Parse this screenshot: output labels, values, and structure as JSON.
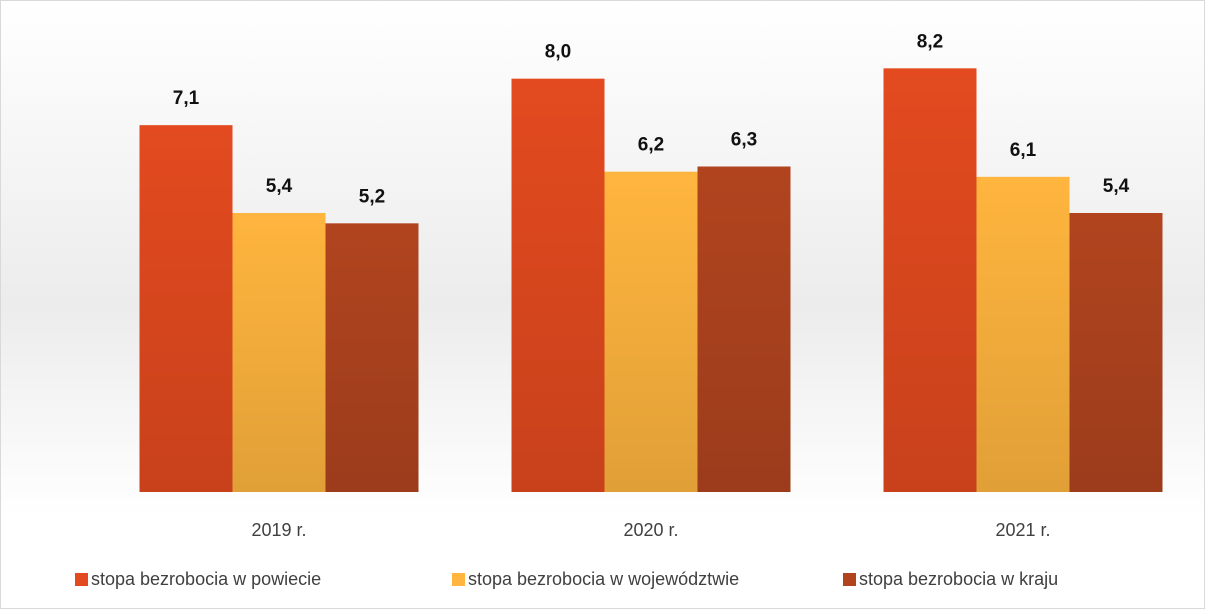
{
  "chart_data": {
    "type": "bar",
    "categories": [
      "2019 r.",
      "2020 r.",
      "2021 r."
    ],
    "series": [
      {
        "name": "stopa bezrobocia w powiecie",
        "color": "#e34a1f",
        "values": [
          7.1,
          8.0,
          8.2
        ],
        "value_labels": [
          "7,1",
          "8,0",
          "8,2"
        ]
      },
      {
        "name": "stopa bezrobocia w województwie",
        "color": "#ffb53e",
        "values": [
          5.4,
          6.2,
          6.1
        ],
        "value_labels": [
          "5,4",
          "6,2",
          "6,1"
        ]
      },
      {
        "name": "stopa bezrobocia w kraju",
        "color": "#b1441f",
        "values": [
          5.2,
          6.3,
          5.4
        ],
        "value_labels": [
          "5,2",
          "6,3",
          "5,4"
        ]
      }
    ],
    "ylim": [
      0,
      9
    ],
    "legend": "bottom"
  }
}
